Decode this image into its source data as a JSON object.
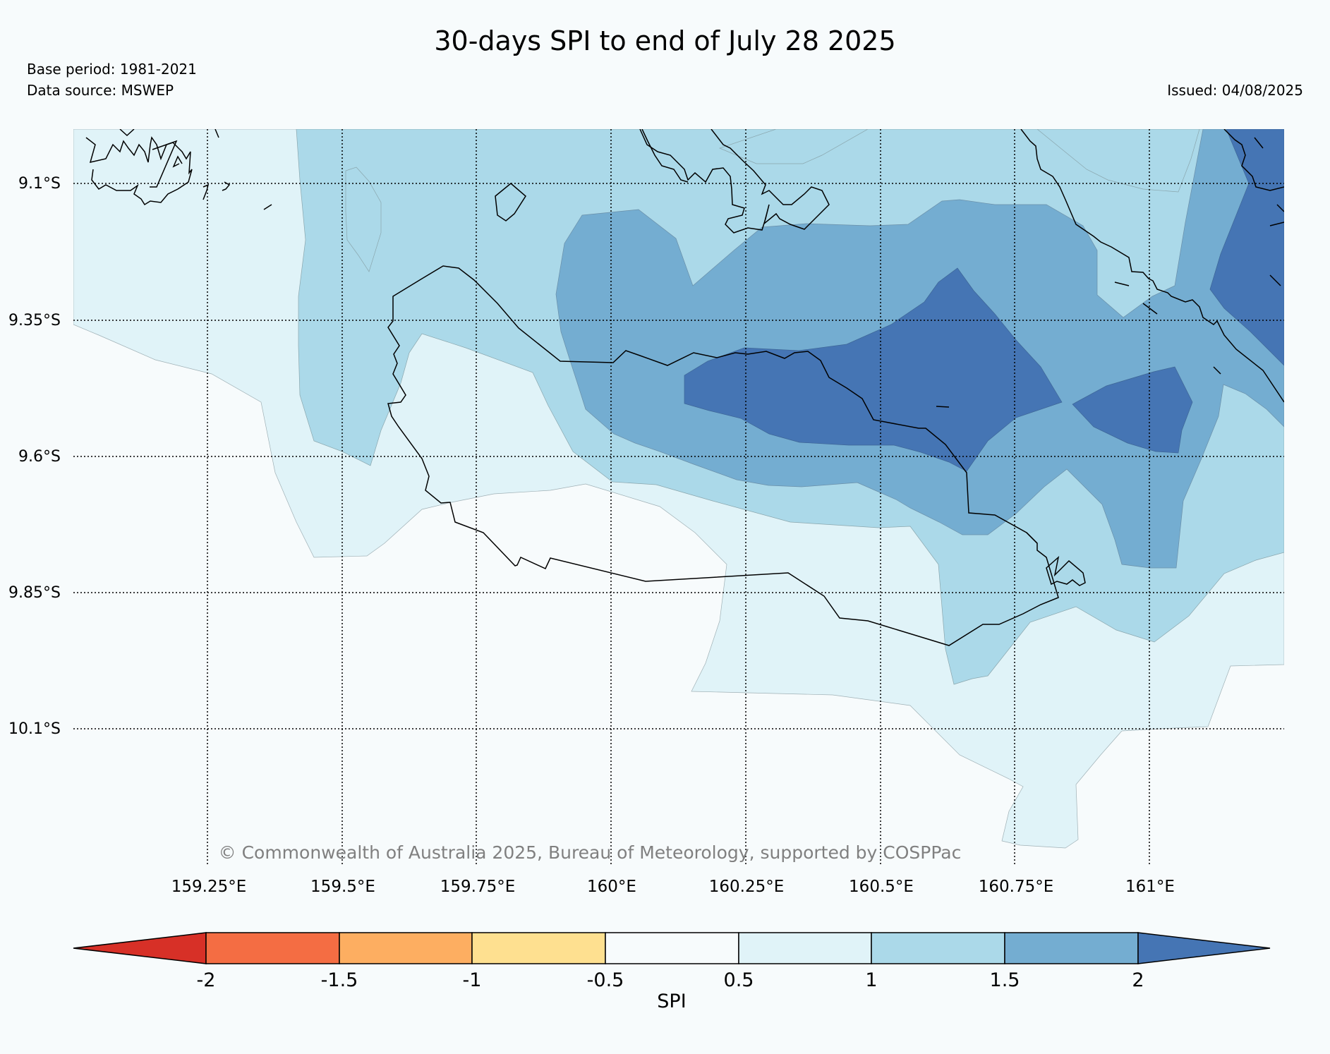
{
  "title": "30-days SPI to end of July 28 2025",
  "base_period": "Base period: 1981-2021",
  "data_source": "Data source: MSWEP",
  "issued": "Issued: 04/08/2025",
  "copyright": "© Commonwealth of Australia 2025, Bureau of Meteorology, supported by COSPPac",
  "axes": {
    "lon_labels": [
      "159.25°E",
      "159.5°E",
      "159.75°E",
      "160°E",
      "160.25°E",
      "160.5°E",
      "160.75°E",
      "161°E"
    ],
    "lat_labels": [
      "9.1°S",
      "9.35°S",
      "9.6°S",
      "9.85°S",
      "10.1°S"
    ],
    "lon_range": [
      159.0,
      161.25
    ],
    "lat_range": [
      -10.35,
      -9.0
    ],
    "gridlines": "dotted"
  },
  "colorbar": {
    "label": "SPI",
    "ticks": [
      "-2",
      "-1.5",
      "-1",
      "-0.5",
      "0.5",
      "1",
      "1.5",
      "2"
    ],
    "colors": [
      "#d73027",
      "#f46d43",
      "#fdae61",
      "#fee090",
      "#f7fbfc",
      "#e0f3f8",
      "#abd9e9",
      "#74add1",
      "#4575b4"
    ],
    "extend": "both"
  },
  "spi_classes": {
    "0.5_to_1": "#e0f3f8",
    "1_to_1.5": "#abd9e9",
    "1.5_to_2": "#74add1",
    "above_2": "#4575b4"
  }
}
